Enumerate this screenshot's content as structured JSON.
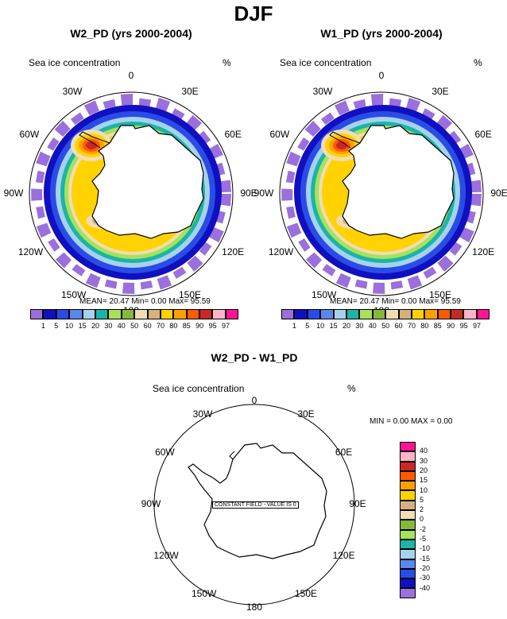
{
  "page_title": "DJF",
  "panels": [
    {
      "title": "W2_PD (yrs 2000-2004)",
      "variable": "Sea ice concentration",
      "units": "%",
      "stats": "MEAN=  20.47  Min=   0.00  Max=  95.59"
    },
    {
      "title": "W1_PD (yrs 2000-2004)",
      "variable": "Sea ice concentration",
      "units": "%",
      "stats": "MEAN=  20.47  Min=   0.00  Max=  95.59"
    }
  ],
  "diff_panel": {
    "title": "W2_PD - W1_PD",
    "variable": "Sea ice concentration",
    "units": "%",
    "stats": "MIN =   0.00  MAX =   0.00",
    "note": "CONSTANT FIELD - VALUE IS 0"
  },
  "lon_labels": [
    "0",
    "30E",
    "60E",
    "90E",
    "120E",
    "150E",
    "180",
    "150W",
    "120W",
    "90W",
    "60W",
    "30W"
  ],
  "colors": {
    "seq": [
      "#9b6fdc",
      "#1010c0",
      "#2a4ce6",
      "#5a87ee",
      "#a6d2ee",
      "#1ab4a8",
      "#a6e25a",
      "#86b83a",
      "#f2dcb4",
      "#d8b080",
      "#ffd200",
      "#ffa000",
      "#ff5a00",
      "#c82828",
      "#ffb4c8",
      "#ff1493"
    ],
    "diff": [
      "#ff1493",
      "#ffb4c8",
      "#c82828",
      "#ff5a00",
      "#ffa000",
      "#ffd200",
      "#d8b080",
      "#f2dcb4",
      "#86b83a",
      "#a6e25a",
      "#1ab4a8",
      "#a6d2ee",
      "#5a87ee",
      "#2a4ce6",
      "#1010c0",
      "#9b6fdc"
    ]
  },
  "chart_data": [
    {
      "type": "heatmap",
      "projection": "south-polar-stereographic",
      "title": "W2_PD (yrs 2000-2004)",
      "variable": "Sea ice concentration",
      "units": "%",
      "levels": [
        1,
        5,
        10,
        15,
        20,
        30,
        40,
        50,
        60,
        70,
        80,
        85,
        90,
        95,
        97
      ],
      "mean": 20.47,
      "min": 0.0,
      "max": 95.59
    },
    {
      "type": "heatmap",
      "projection": "south-polar-stereographic",
      "title": "W1_PD (yrs 2000-2004)",
      "variable": "Sea ice concentration",
      "units": "%",
      "levels": [
        1,
        5,
        10,
        15,
        20,
        30,
        40,
        50,
        60,
        70,
        80,
        85,
        90,
        95,
        97
      ],
      "mean": 20.47,
      "min": 0.0,
      "max": 95.59
    },
    {
      "type": "heatmap",
      "projection": "south-polar-stereographic",
      "title": "W2_PD - W1_PD",
      "variable": "Sea ice concentration",
      "units": "%",
      "levels": [
        40,
        30,
        20,
        15,
        10,
        5,
        2,
        0,
        -2,
        -5,
        -10,
        -15,
        -20,
        -30,
        -40
      ],
      "min": 0.0,
      "max": 0.0,
      "constant_value": 0
    }
  ]
}
